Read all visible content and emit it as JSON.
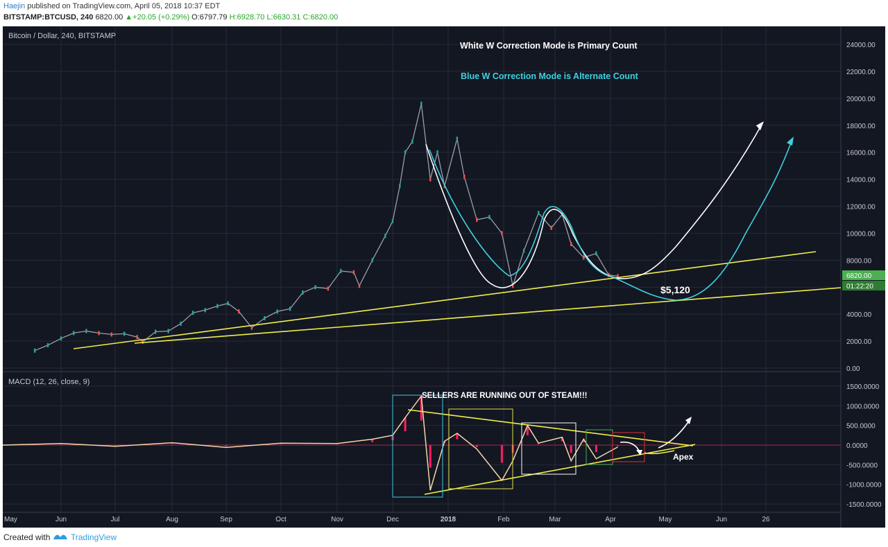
{
  "header": {
    "author": "Haejin",
    "published_text": "published on TradingView.com, April 05, 2018 10:37 EDT",
    "symbol": "BITSTAMP:BTCUSD, 240",
    "price": "6820.00",
    "change": "+20.05 (+0.29%)",
    "open": "O:6797.79",
    "high": "H:6928.70",
    "low": "L:6630.31",
    "close": "C:6820.00"
  },
  "footer": {
    "created_with": "Created with",
    "brand": "TradingView"
  },
  "colors": {
    "background": "#131722",
    "grid": "#262b38",
    "axis_text": "#c8cbd3",
    "trendline": "#f2f04a",
    "white_path": "#ffffff",
    "cyan_path": "#3fd0e0",
    "macd": "#f5d7a8",
    "histogram": "#ff1e64",
    "price_tag": "#4caf50"
  },
  "chart_data": [
    {
      "type": "line",
      "title": "Bitcoin / Dollar, 240, BITSTAMP",
      "xlabel": "",
      "ylabel": "",
      "ylim": [
        0,
        25000
      ],
      "y_ticks": [
        "24000.00",
        "22000.00",
        "20000.00",
        "18000.00",
        "16000.00",
        "14000.00",
        "12000.00",
        "10000.00",
        "8000.00",
        "6000.00",
        "4000.00",
        "2000.00",
        "0.00"
      ],
      "x_ticks": [
        "Jun",
        "Jul",
        "Aug",
        "Sep",
        "Oct",
        "Nov",
        "Dec",
        "2018",
        "Feb",
        "Mar",
        "Apr",
        "May",
        "Jun",
        "26"
      ],
      "x_first_partial": "May",
      "last_price": "6820.00",
      "countdown": "01:22:20",
      "grid": true,
      "annotations": {
        "white_count": "White W Correction Mode is Primary Count",
        "blue_count": "Blue W Correction Mode is Alternate Count",
        "target": "$5,120"
      },
      "series": [
        {
          "name": "BTCUSD",
          "x": [
            "May 18",
            "May 25",
            "Jun 1",
            "Jun 8",
            "Jun 15",
            "Jun 22",
            "Jun 29",
            "Jul 6",
            "Jul 13",
            "Jul 16",
            "Jul 23",
            "Jul 30",
            "Aug 6",
            "Aug 13",
            "Aug 20",
            "Aug 27",
            "Sep 2",
            "Sep 8",
            "Sep 15",
            "Sep 22",
            "Sep 29",
            "Oct 6",
            "Oct 13",
            "Oct 20",
            "Oct 27",
            "Nov 3",
            "Nov 10",
            "Nov 13",
            "Nov 20",
            "Nov 27",
            "Dec 1",
            "Dec 5",
            "Dec 8",
            "Dec 12",
            "Dec 17",
            "Dec 22",
            "Dec 26",
            "Dec 30",
            "Jan 6",
            "Jan 10",
            "Jan 17",
            "Jan 24",
            "Jan 31",
            "Feb 6",
            "Feb 12",
            "Feb 20",
            "Feb 27",
            "Mar 5",
            "Mar 10",
            "Mar 17",
            "Mar 24",
            "Mar 31",
            "Apr 5"
          ],
          "y": [
            1300,
            1700,
            2200,
            2600,
            2750,
            2600,
            2500,
            2550,
            2300,
            1950,
            2700,
            2750,
            3300,
            4100,
            4300,
            4600,
            4800,
            4200,
            3000,
            3700,
            4200,
            4400,
            5600,
            6000,
            5900,
            7200,
            7100,
            6100,
            8000,
            9800,
            10900,
            13500,
            16000,
            16800,
            19600,
            14000,
            16000,
            13500,
            17000,
            14200,
            11000,
            11200,
            10000,
            6100,
            8700,
            11500,
            10400,
            11400,
            9200,
            8200,
            8500,
            6900,
            6820
          ]
        }
      ]
    },
    {
      "type": "line",
      "title": "MACD (12, 26, close, 9)",
      "xlabel": "",
      "ylabel": "",
      "ylim": [
        -1750,
        1750
      ],
      "y_ticks": [
        "1500.0000",
        "1000.0000",
        "500.0000",
        "0.0000",
        "-500.0000",
        "-1000.0000",
        "-1500.0000"
      ],
      "annotations": {
        "headline": "SELLERS ARE RUNNING OUT OF STEAM!!!",
        "apex": "Apex"
      },
      "series": [
        {
          "name": "MACD",
          "x": [
            "May",
            "Jun",
            "Jul",
            "Aug",
            "Sep",
            "Oct",
            "Nov",
            "Nov 20",
            "Dec 1",
            "Dec 8",
            "Dec 17",
            "Dec 22",
            "Dec 30",
            "Jan 6",
            "Jan 17",
            "Jan 31",
            "Feb 6",
            "Feb 14",
            "Feb 20",
            "Mar 5",
            "Mar 10",
            "Mar 17",
            "Mar 24",
            "Apr 5"
          ],
          "y": [
            0,
            40,
            -30,
            60,
            -60,
            50,
            40,
            150,
            250,
            700,
            1250,
            -1150,
            100,
            300,
            -100,
            -900,
            -400,
            500,
            50,
            200,
            -400,
            150,
            -350,
            -50
          ]
        }
      ]
    }
  ]
}
